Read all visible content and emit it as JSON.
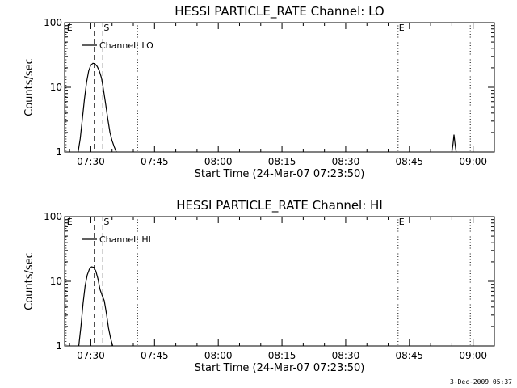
{
  "footer": {
    "timestamp": "3-Dec-2009 05:37"
  },
  "chart_data": [
    {
      "type": "line",
      "title": "HESSI PARTICLE_RATE Channel: LO",
      "xlabel": "Start Time (24-Mar-07 07:23:50)",
      "ylabel": "Counts/sec",
      "yscale": "log",
      "ylim": [
        1,
        100
      ],
      "xlim": [
        "07:23:50",
        "09:05:00"
      ],
      "x_ticks": [
        "07:30",
        "07:45",
        "08:00",
        "08:15",
        "08:30",
        "08:45",
        "09:00"
      ],
      "y_ticks": [
        "1",
        "10",
        "100"
      ],
      "legend": {
        "placement": "top-left",
        "entries": [
          "Channel: LO"
        ]
      },
      "grid": false,
      "markers": [
        {
          "time": "07:24:10",
          "label": "E",
          "style": "dotted"
        },
        {
          "time": "07:30:50",
          "label": "",
          "style": "dashed"
        },
        {
          "time": "07:32:50",
          "label": "S",
          "style": "dashed"
        },
        {
          "time": "07:41:00",
          "label": "",
          "style": "dotted"
        },
        {
          "time": "08:42:20",
          "label": "E",
          "style": "dotted"
        },
        {
          "time": "08:59:20",
          "label": "",
          "style": "dotted"
        }
      ],
      "series": [
        {
          "name": "Channel: LO",
          "segments": [
            {
              "x": [
                "07:27:00",
                "07:27:30",
                "07:28:00",
                "07:28:30",
                "07:29:00",
                "07:29:30",
                "07:30:00",
                "07:30:30",
                "07:31:00",
                "07:31:30",
                "07:32:00",
                "07:32:30",
                "07:33:00",
                "07:33:30",
                "07:34:00",
                "07:34:30",
                "07:35:00",
                "07:35:30",
                "07:36:00"
              ],
              "y": [
                1,
                1.6,
                3.2,
                6.5,
                12,
                18,
                22,
                23.5,
                23,
                21,
                18,
                14,
                9,
                5.5,
                3.2,
                2,
                1.5,
                1.2,
                1
              ]
            },
            {
              "x": [
                "08:55:00",
                "08:55:15",
                "08:55:30",
                "08:55:45",
                "08:56:00"
              ],
              "y": [
                1,
                1.3,
                1.85,
                1.3,
                1
              ]
            }
          ]
        }
      ]
    },
    {
      "type": "line",
      "title": "HESSI PARTICLE_RATE Channel: HI",
      "xlabel": "Start Time (24-Mar-07 07:23:50)",
      "ylabel": "Counts/sec",
      "yscale": "log",
      "ylim": [
        1,
        100
      ],
      "xlim": [
        "07:23:50",
        "09:05:00"
      ],
      "x_ticks": [
        "07:30",
        "07:45",
        "08:00",
        "08:15",
        "08:30",
        "08:45",
        "09:00"
      ],
      "y_ticks": [
        "1",
        "10",
        "100"
      ],
      "legend": {
        "placement": "top-left",
        "entries": [
          "Channel: HI"
        ]
      },
      "grid": false,
      "markers": [
        {
          "time": "07:24:10",
          "label": "E",
          "style": "dotted"
        },
        {
          "time": "07:30:50",
          "label": "",
          "style": "dashed"
        },
        {
          "time": "07:32:50",
          "label": "S",
          "style": "dashed"
        },
        {
          "time": "07:41:00",
          "label": "",
          "style": "dotted"
        },
        {
          "time": "08:42:20",
          "label": "E",
          "style": "dotted"
        },
        {
          "time": "08:59:20",
          "label": "",
          "style": "dotted"
        }
      ],
      "series": [
        {
          "name": "Channel: HI",
          "segments": [
            {
              "x": [
                "07:27:10",
                "07:27:40",
                "07:28:10",
                "07:28:40",
                "07:29:10",
                "07:29:40",
                "07:30:10",
                "07:30:40",
                "07:31:10",
                "07:31:40",
                "07:32:10",
                "07:32:40",
                "07:33:10",
                "07:33:40",
                "07:34:10",
                "07:34:40",
                "07:35:10"
              ],
              "y": [
                1,
                2,
                4.5,
                8.5,
                12.5,
                15.5,
                16.8,
                16.5,
                14.5,
                11,
                7.5,
                6,
                5,
                3.2,
                1.9,
                1.3,
                1
              ]
            }
          ]
        }
      ]
    }
  ]
}
